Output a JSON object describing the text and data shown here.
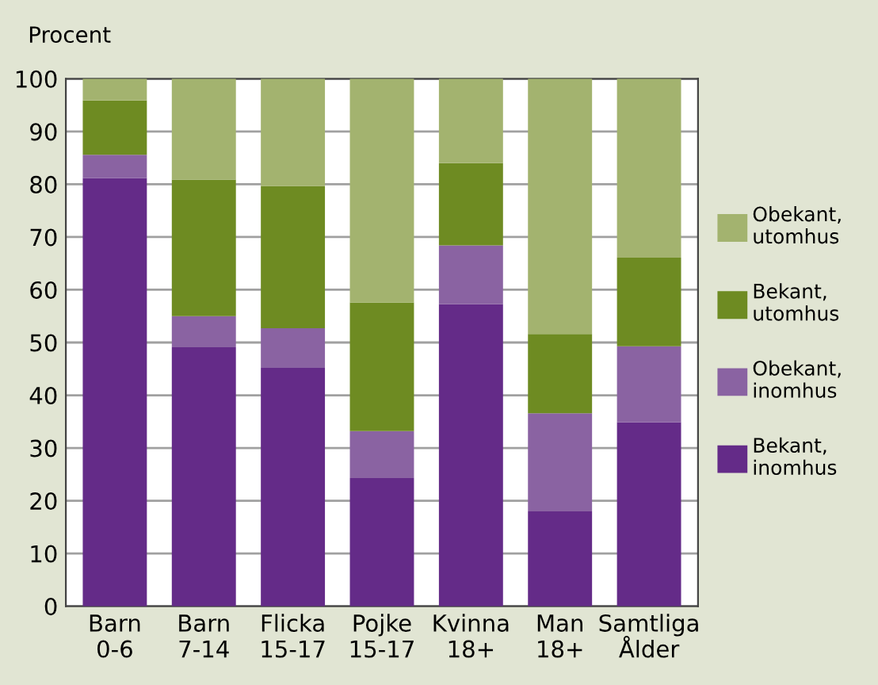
{
  "chart_data": {
    "type": "bar",
    "stacked": true,
    "ylabel": "Procent",
    "categories": [
      "Barn\n0-6",
      "Barn\n7-14",
      "Flicka\n15-17",
      "Pojke\n15-17",
      "Kvinna\n18+",
      "Man\n18+",
      "Samtliga\nÅlder"
    ],
    "series": [
      {
        "name": "Bekant,\ninomhus",
        "color": "#642b88",
        "values": [
          81.2,
          49.1,
          45.2,
          24.3,
          57.3,
          18.0,
          34.9
        ]
      },
      {
        "name": "Obekant,\ninomhus",
        "color": "#8a63a2",
        "values": [
          4.4,
          5.9,
          7.5,
          8.9,
          11.1,
          18.6,
          14.4
        ]
      },
      {
        "name": "Bekant,\nutomhus",
        "color": "#6e8b22",
        "values": [
          10.3,
          25.9,
          27.0,
          24.4,
          15.6,
          15.0,
          16.8
        ]
      },
      {
        "name": "Obekant,\nutomhus",
        "color": "#a3b36f",
        "values": [
          4.1,
          19.1,
          20.3,
          42.4,
          16.0,
          48.4,
          33.9
        ]
      }
    ],
    "ylim": [
      0,
      100
    ],
    "yticks": [
      0,
      10,
      20,
      30,
      40,
      50,
      60,
      70,
      80,
      90,
      100
    ],
    "grid": "y",
    "legend": "right"
  }
}
